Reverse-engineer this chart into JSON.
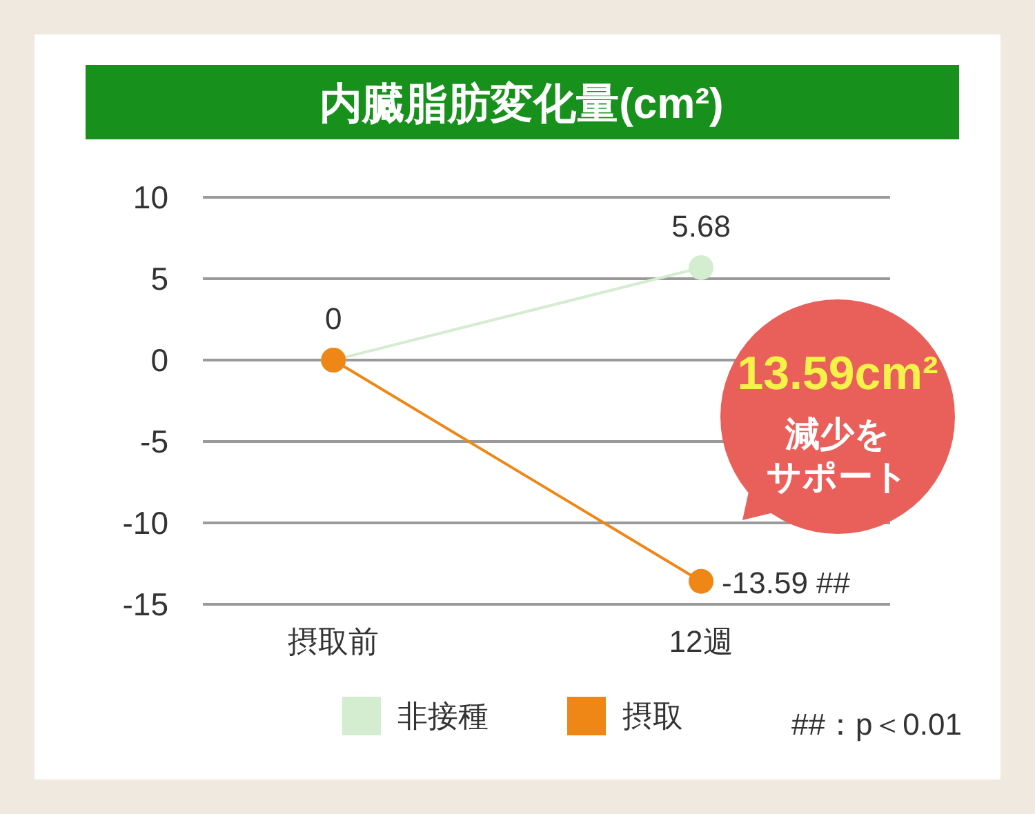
{
  "chart_data": {
    "type": "line",
    "title": "内臓脂肪変化量(cm²)",
    "categories": [
      "摂取前",
      "12週"
    ],
    "series": [
      {
        "name": "非接種",
        "color": "#d4ecd0",
        "values": [
          0,
          5.68
        ],
        "value_labels": [
          null,
          "5.68"
        ]
      },
      {
        "name": "摂取",
        "color": "#ee8716",
        "values": [
          0,
          -13.59
        ],
        "value_labels": [
          "0",
          "-13.59 ##"
        ]
      }
    ],
    "ylim": [
      -15,
      10
    ],
    "yticks": [
      10,
      5,
      0,
      -5,
      -10,
      -15
    ],
    "grid": "y",
    "legend": "bottom",
    "marker": "circle",
    "line_style": "solid",
    "annotations": [
      "13.59cm²",
      "減少を",
      "サポート",
      "##：p＜0.01"
    ]
  }
}
